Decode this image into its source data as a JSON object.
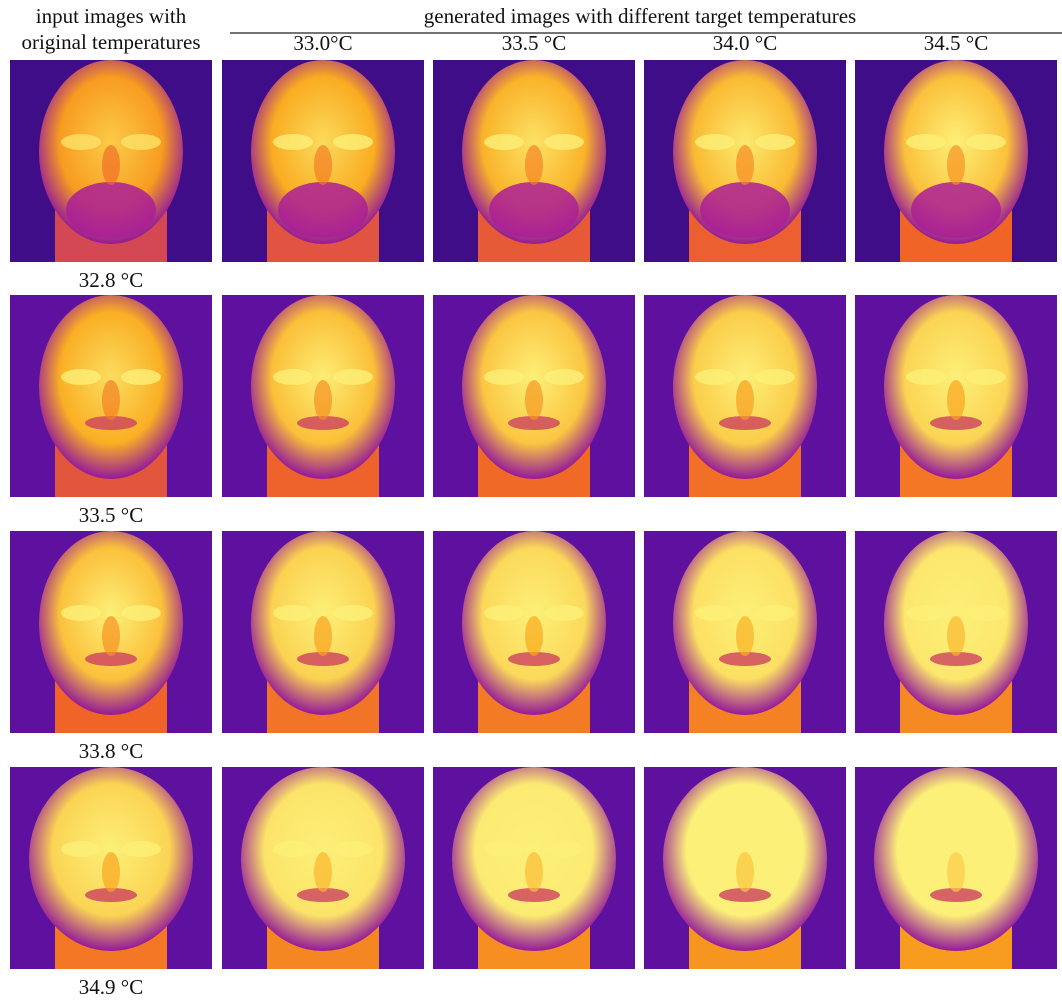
{
  "header": {
    "input_label_line1": "input images with",
    "input_label_line2": "original temperatures",
    "generated_label": "generated images with different target temperatures"
  },
  "columns": [
    "33.0°C",
    "33.5 °C",
    "34.0 °C",
    "34.5 °C"
  ],
  "rows": [
    "32.8 °C",
    "33.5 °C",
    "33.8 °C",
    "34.9 °C"
  ]
}
